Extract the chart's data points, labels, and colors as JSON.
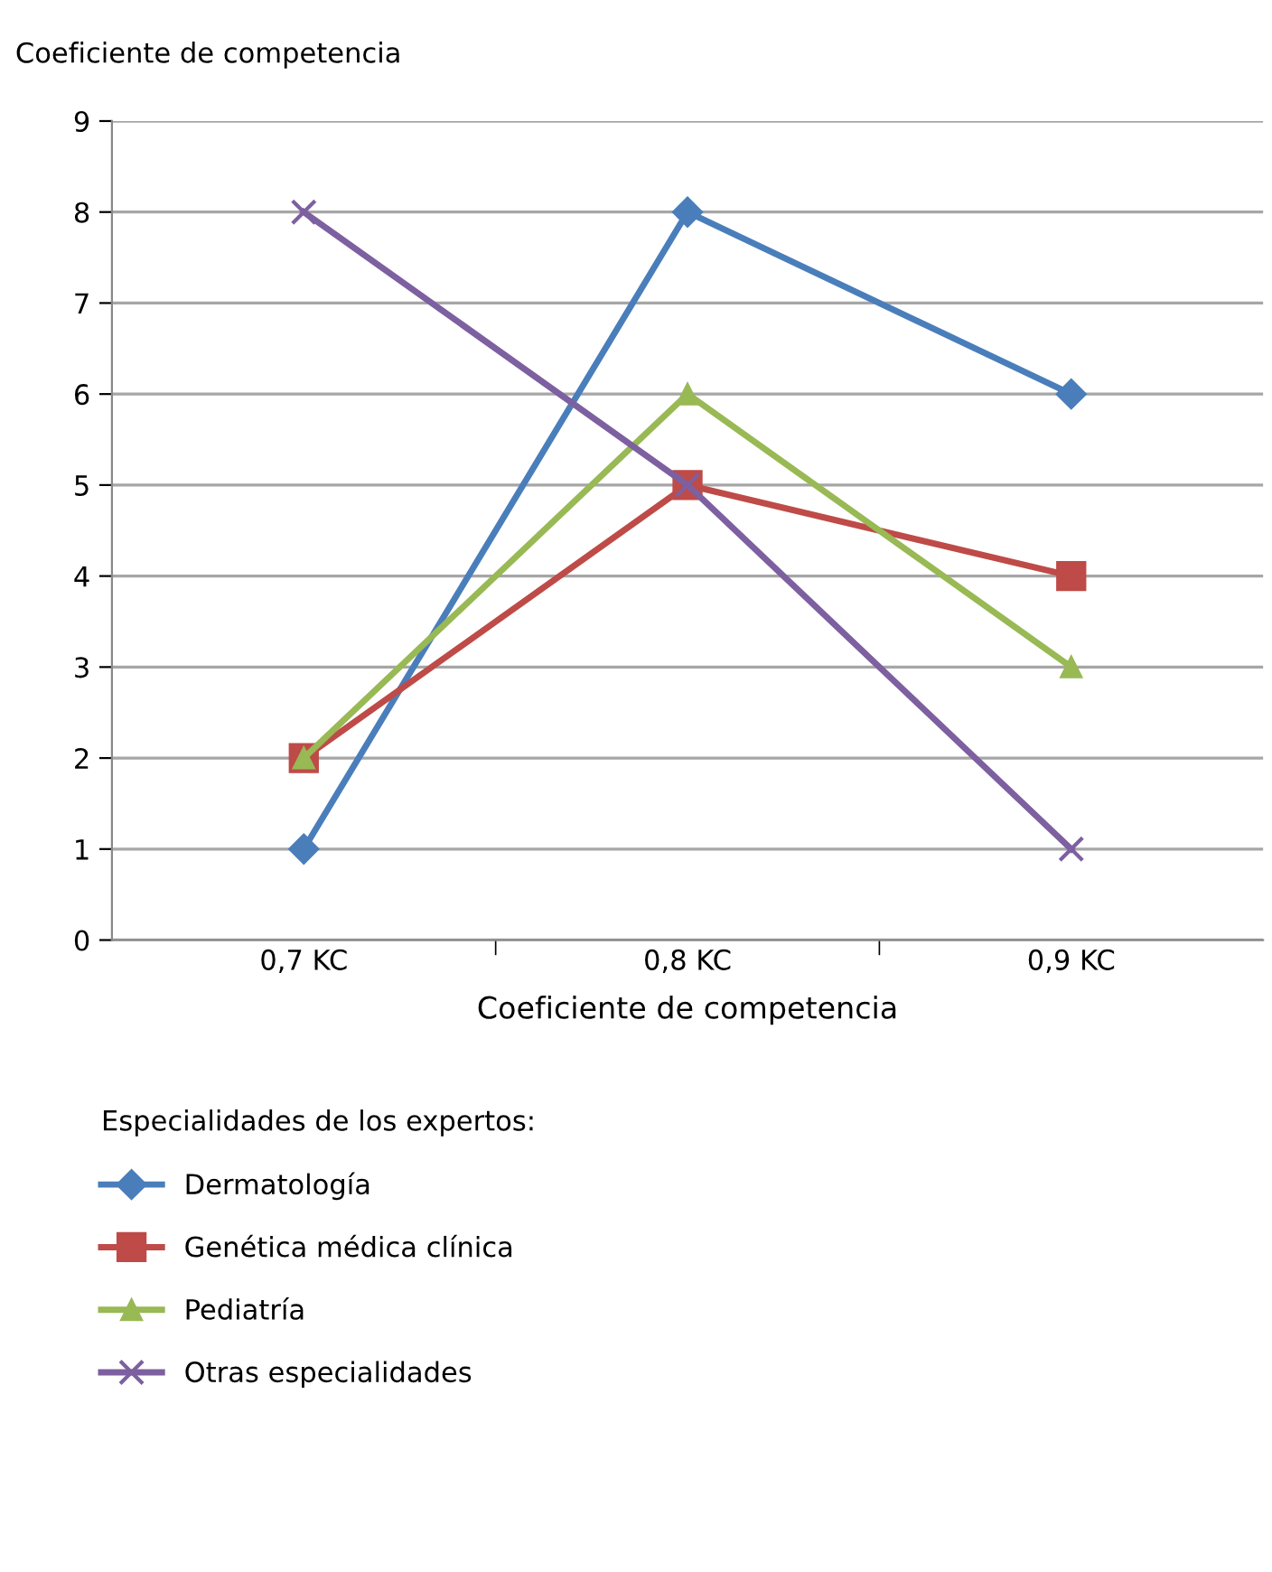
{
  "chart_data": {
    "type": "line",
    "ylabel": "Coeficiente de competencia",
    "xlabel": "Coeficiente de competencia",
    "categories": [
      "0,7 KC",
      "0,8 KC",
      "0,9 KC"
    ],
    "series": [
      {
        "name": "Dermatología",
        "color": "#4a7ebb",
        "marker": "diamond",
        "values": [
          1,
          8,
          6
        ]
      },
      {
        "name": "Genética médica clínica",
        "color": "#be4b48",
        "marker": "square",
        "values": [
          2,
          5,
          4
        ]
      },
      {
        "name": "Pediatría",
        "color": "#98b954",
        "marker": "triangle",
        "values": [
          2,
          6,
          3
        ]
      },
      {
        "name": "Otras especialidades",
        "color": "#7d60a0",
        "marker": "cross",
        "values": [
          8,
          5,
          1
        ]
      }
    ],
    "ylim": [
      0,
      9
    ],
    "yticks": [
      0,
      1,
      2,
      3,
      4,
      5,
      6,
      7,
      8,
      9
    ],
    "grid": "y",
    "legend": "bottom",
    "legend_title": "Especialidades de los expertos:",
    "line_style": "solid"
  }
}
